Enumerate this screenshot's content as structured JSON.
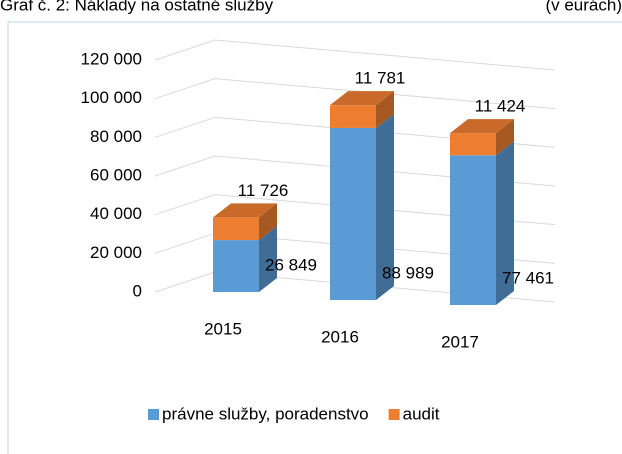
{
  "chart_data": {
    "type": "bar3d_stacked",
    "title": "Graf č. 2: Náklady na ostatné služby",
    "subtitle": "(v eurách)",
    "categories": [
      "2015",
      "2016",
      "2017"
    ],
    "series": [
      {
        "name": "právne služby, poradenstvo",
        "color": "#5b9bd5",
        "values": [
          26849,
          88989,
          77461
        ],
        "value_labels": [
          "26 849",
          "88 989",
          "77 461"
        ]
      },
      {
        "name": "audit",
        "color": "#ed7d31",
        "values": [
          11726,
          11781,
          11424
        ],
        "value_labels": [
          "11 726",
          "11 781",
          "11 424"
        ]
      }
    ],
    "ylim": [
      0,
      120000
    ],
    "yticks": [
      {
        "value": 0,
        "label": "0"
      },
      {
        "value": 20000,
        "label": "20 000"
      },
      {
        "value": 40000,
        "label": "40 000"
      },
      {
        "value": 60000,
        "label": "60 000"
      },
      {
        "value": 80000,
        "label": "80 000"
      },
      {
        "value": 100000,
        "label": "100 000"
      },
      {
        "value": 120000,
        "label": "120 000"
      }
    ],
    "grid": true
  }
}
